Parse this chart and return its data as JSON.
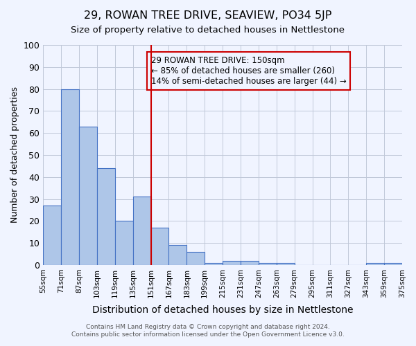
{
  "title": "29, ROWAN TREE DRIVE, SEAVIEW, PO34 5JP",
  "subtitle": "Size of property relative to detached houses in Nettlestone",
  "xlabel": "Distribution of detached houses by size in Nettlestone",
  "ylabel": "Number of detached properties",
  "bar_values": [
    27,
    80,
    63,
    44,
    20,
    31,
    17,
    9,
    6,
    1,
    2,
    2,
    1,
    1,
    0,
    0,
    0,
    0,
    1,
    1
  ],
  "bin_labels": [
    "55sqm",
    "71sqm",
    "87sqm",
    "103sqm",
    "119sqm",
    "135sqm",
    "151sqm",
    "167sqm",
    "183sqm",
    "199sqm",
    "215sqm",
    "231sqm",
    "247sqm",
    "263sqm",
    "279sqm",
    "295sqm",
    "311sqm",
    "327sqm",
    "343sqm",
    "359sqm",
    "375sqm"
  ],
  "bar_color": "#aec6e8",
  "bar_edge_color": "#4472c4",
  "property_line_x": 6,
  "property_line_color": "#cc0000",
  "annotation_text": "29 ROWAN TREE DRIVE: 150sqm\n← 85% of detached houses are smaller (260)\n14% of semi-detached houses are larger (44) →",
  "annotation_box_color": "#cc0000",
  "ylim": [
    0,
    100
  ],
  "yticks": [
    0,
    10,
    20,
    30,
    40,
    50,
    60,
    70,
    80,
    90,
    100
  ],
  "footer_line1": "Contains HM Land Registry data © Crown copyright and database right 2024.",
  "footer_line2": "Contains public sector information licensed under the Open Government Licence v3.0.",
  "bg_color": "#f0f4ff",
  "grid_color": "#c0c8d8"
}
